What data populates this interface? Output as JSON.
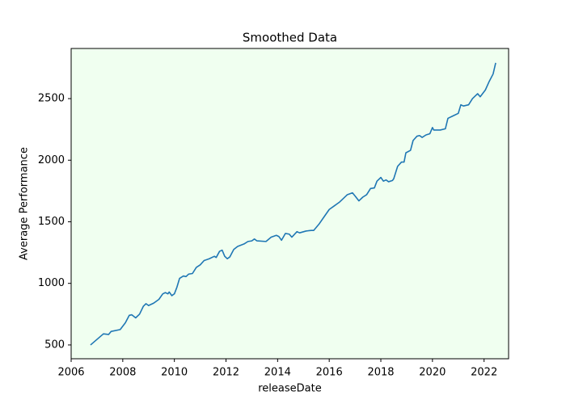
{
  "chart_data": {
    "type": "line",
    "title": "Smoothed Data",
    "xlabel": "releaseDate",
    "ylabel": "Average Performance",
    "x": [
      2006.75,
      2007.0,
      2007.25,
      2007.45,
      2007.55,
      2007.9,
      2008.1,
      2008.25,
      2008.35,
      2008.5,
      2008.65,
      2008.8,
      2008.9,
      2009.0,
      2009.2,
      2009.4,
      2009.55,
      2009.65,
      2009.75,
      2009.8,
      2009.9,
      2010.0,
      2010.1,
      2010.2,
      2010.35,
      2010.45,
      2010.55,
      2010.7,
      2010.85,
      2011.0,
      2011.15,
      2011.35,
      2011.55,
      2011.62,
      2011.75,
      2011.85,
      2011.95,
      2012.05,
      2012.15,
      2012.3,
      2012.45,
      2012.7,
      2012.85,
      2013.0,
      2013.1,
      2013.2,
      2013.55,
      2013.75,
      2013.95,
      2014.05,
      2014.15,
      2014.3,
      2014.45,
      2014.55,
      2014.75,
      2014.85,
      2015.1,
      2015.3,
      2015.4,
      2015.6,
      2015.8,
      2016.0,
      2016.2,
      2016.4,
      2016.5,
      2016.7,
      2016.9,
      2017.0,
      2017.15,
      2017.3,
      2017.45,
      2017.6,
      2017.75,
      2017.85,
      2018.0,
      2018.1,
      2018.2,
      2018.3,
      2018.45,
      2018.5,
      2018.65,
      2018.8,
      2018.9,
      2018.97,
      2019.15,
      2019.25,
      2019.4,
      2019.5,
      2019.6,
      2019.75,
      2019.9,
      2020.0,
      2020.05,
      2020.3,
      2020.5,
      2020.6,
      2020.8,
      2021.0,
      2021.1,
      2021.2,
      2021.4,
      2021.55,
      2021.75,
      2021.85,
      2022.05,
      2022.2,
      2022.35,
      2022.45
    ],
    "series": [
      {
        "name": "Average Performance",
        "color": "#1f77b4",
        "values": [
          500,
          545,
          590,
          585,
          610,
          625,
          680,
          740,
          745,
          720,
          750,
          815,
          835,
          820,
          840,
          870,
          915,
          925,
          915,
          930,
          900,
          915,
          970,
          1040,
          1060,
          1055,
          1075,
          1080,
          1130,
          1150,
          1185,
          1200,
          1220,
          1210,
          1260,
          1270,
          1220,
          1200,
          1215,
          1275,
          1300,
          1320,
          1340,
          1345,
          1360,
          1345,
          1340,
          1375,
          1390,
          1380,
          1350,
          1405,
          1400,
          1375,
          1420,
          1410,
          1425,
          1430,
          1430,
          1480,
          1540,
          1600,
          1630,
          1660,
          1680,
          1720,
          1735,
          1710,
          1670,
          1700,
          1720,
          1770,
          1775,
          1830,
          1860,
          1830,
          1840,
          1825,
          1835,
          1850,
          1950,
          1985,
          1985,
          2060,
          2080,
          2160,
          2195,
          2200,
          2185,
          2205,
          2215,
          2265,
          2245,
          2245,
          2255,
          2340,
          2360,
          2380,
          2450,
          2440,
          2450,
          2500,
          2540,
          2515,
          2570,
          2640,
          2700,
          2790
        ]
      }
    ],
    "xlim": [
      2006.0,
      2022.95
    ],
    "xticks": [
      2006,
      2008,
      2010,
      2012,
      2014,
      2016,
      2018,
      2020,
      2022
    ],
    "ylim": [
      388,
      2907
    ],
    "yticks": [
      500,
      1000,
      1500,
      2000,
      2500
    ],
    "background": "#f0fff0"
  }
}
